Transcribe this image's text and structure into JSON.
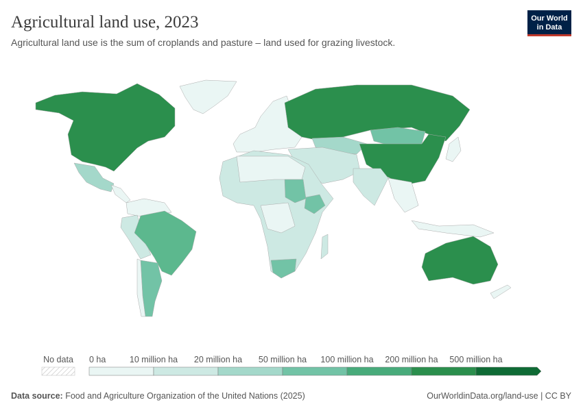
{
  "header": {
    "title": "Agricultural land use, 2023",
    "subtitle": "Agricultural land use is the sum of croplands and pasture – land used for grazing livestock.",
    "logo": [
      "Our World",
      "in Data"
    ]
  },
  "legend": {
    "no_data": "No data",
    "labels": [
      "0 ha",
      "10 million ha",
      "20 million ha",
      "50 million ha",
      "100 million ha",
      "200 million ha",
      "500 million ha"
    ],
    "colors": [
      "#eaf6f4",
      "#cde9e3",
      "#a4d8ca",
      "#72c3a6",
      "#48ab7b",
      "#2b8f4d",
      "#0f6b35"
    ]
  },
  "footer": {
    "source_label": "Data source:",
    "source": "Food and Agriculture Organization of the United Nations (2025)",
    "url": "OurWorldinData.org/land-use | CC BY"
  }
}
